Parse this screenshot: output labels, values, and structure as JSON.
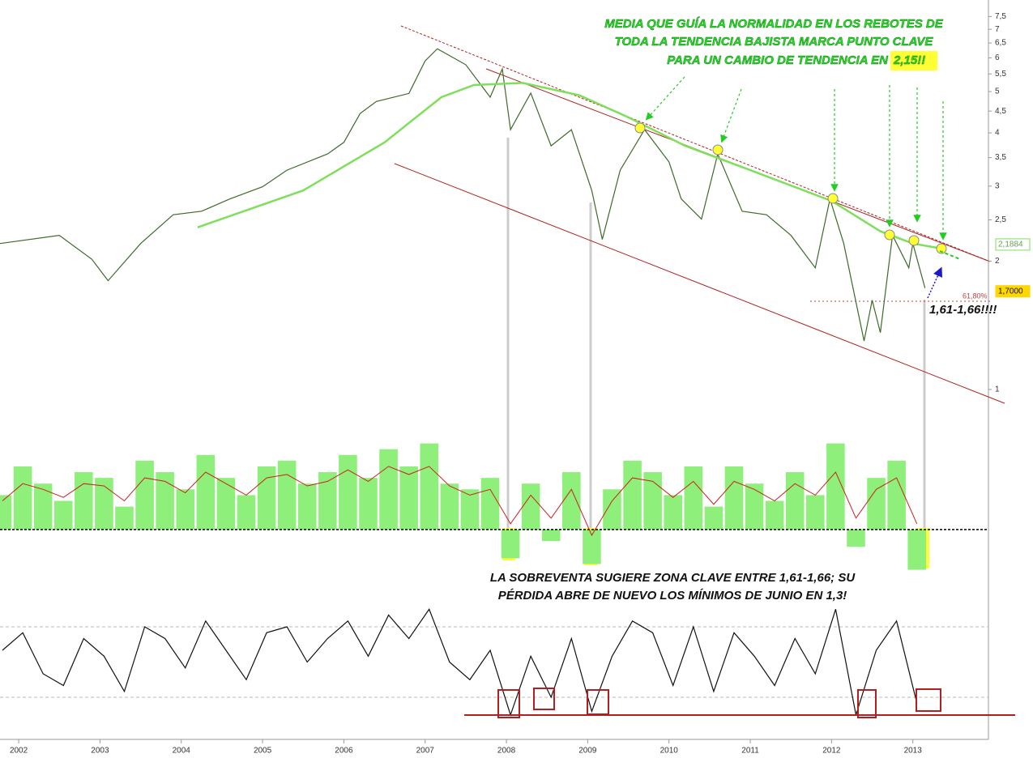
{
  "chart_data": [
    {
      "type": "line",
      "log_scale": true,
      "xlim": [
        2001.77,
        2013.93
      ],
      "ylim": [
        0.92,
        8.2
      ],
      "yticks": [
        {
          "value": 7.5,
          "label": "7,5"
        },
        7,
        {
          "value": 6.5,
          "label": "6,5"
        },
        6,
        {
          "value": 5.5,
          "label": "5,5"
        },
        5,
        {
          "value": 4.5,
          "label": "4,5"
        },
        4,
        {
          "value": 3.5,
          "label": "3,5"
        },
        3,
        {
          "value": 2.5,
          "label": "2,5"
        },
        2,
        1
      ],
      "series": [
        {
          "color": "#3d6a2a",
          "x": [
            2001.77,
            2002.5,
            2002.9,
            2003.1,
            2003.5,
            2003.9,
            2004.25,
            2004.6,
            2005.0,
            2005.3,
            2005.8,
            2006.0,
            2006.2,
            2006.4,
            2006.8,
            2007.0,
            2007.15,
            2007.5,
            2007.8,
            2007.95,
            2008.05,
            2008.3,
            2008.55,
            2008.8,
            2009.05,
            2009.18,
            2009.4,
            2009.7,
            2010.0,
            2010.15,
            2010.4,
            2010.6,
            2010.9,
            2011.2,
            2011.5,
            2011.8,
            2011.98,
            2012.15,
            2012.4,
            2012.5,
            2012.6,
            2012.75,
            2012.95,
            2013.0,
            2013.15
          ],
          "values": [
            2.2,
            2.3,
            2.02,
            1.8,
            2.2,
            2.57,
            2.62,
            2.8,
            2.99,
            3.27,
            3.57,
            3.8,
            4.44,
            4.74,
            4.95,
            5.9,
            6.3,
            5.78,
            4.85,
            5.65,
            4.07,
            4.96,
            3.73,
            4.07,
            2.93,
            2.25,
            3.27,
            4.07,
            3.42,
            2.8,
            2.51,
            3.57,
            2.62,
            2.57,
            2.3,
            1.93,
            2.8,
            2.2,
            1.3,
            1.62,
            1.36,
            2.3,
            1.93,
            2.2,
            1.73
          ]
        },
        {
          "color": "#7ee05a",
          "x": [
            2004.2,
            2005.5,
            2006.5,
            2007.2,
            2007.6,
            2008.2,
            2008.9,
            2009.5,
            2010.2,
            2011.0,
            2012.0,
            2012.6,
            2013.0,
            2013.3
          ],
          "values": [
            2.4,
            2.93,
            3.8,
            4.85,
            5.18,
            5.24,
            4.9,
            4.35,
            3.73,
            3.27,
            2.77,
            2.35,
            2.2,
            2.15
          ]
        }
      ],
      "price_markers": [
        {
          "value": 2.1884,
          "label": "2,1884",
          "color": "#7ee05a"
        },
        {
          "value": 1.7,
          "label": "1,7000",
          "color": "#ffd700"
        }
      ],
      "annotations": [
        "MEDIA QUE GUÍA LA NORMALIDAD EN LOS REBOTES DE",
        "TODA LA TENDENCIA BAJISTA MARCA PUNTO CLAVE",
        "PARA UN CAMBIO DE TENDENCIA EN",
        "2,15!!",
        "1,61-1,66!!!!",
        "61,80%"
      ]
    },
    {
      "type": "bar",
      "xlim": [
        2001.77,
        2013.93
      ],
      "ylim": [
        -36,
        105
      ],
      "x": [
        2001.8,
        2002.05,
        2002.3,
        2002.55,
        2002.8,
        2003.05,
        2003.3,
        2003.55,
        2003.8,
        2004.05,
        2004.3,
        2004.55,
        2004.8,
        2005.05,
        2005.3,
        2005.55,
        2005.8,
        2006.05,
        2006.3,
        2006.55,
        2006.8,
        2007.05,
        2007.3,
        2007.55,
        2007.8,
        2008.05,
        2008.3,
        2008.55,
        2008.8,
        2009.05,
        2009.3,
        2009.55,
        2009.8,
        2010.05,
        2010.3,
        2010.55,
        2010.8,
        2011.05,
        2011.3,
        2011.55,
        2011.8,
        2012.05,
        2012.3,
        2012.55,
        2012.8,
        2013.05
      ],
      "series": [
        {
          "color": "#8ef07a",
          "values": [
            30,
            55,
            40,
            25,
            50,
            45,
            20,
            60,
            50,
            35,
            65,
            45,
            30,
            55,
            60,
            40,
            50,
            65,
            45,
            70,
            55,
            75,
            40,
            35,
            45,
            -25,
            40,
            -10,
            50,
            -30,
            35,
            60,
            50,
            30,
            55,
            20,
            55,
            40,
            25,
            50,
            30,
            75,
            -15,
            45,
            60,
            -35
          ]
        },
        {
          "color": "#cc2020",
          "values": [
            25,
            40,
            35,
            28,
            40,
            38,
            25,
            45,
            42,
            32,
            50,
            40,
            30,
            45,
            48,
            38,
            42,
            52,
            42,
            55,
            48,
            55,
            38,
            30,
            35,
            5,
            30,
            10,
            35,
            -5,
            25,
            45,
            42,
            28,
            42,
            22,
            42,
            35,
            25,
            40,
            30,
            50,
            10,
            35,
            45,
            5
          ]
        }
      ],
      "annotations": [
        "LA SOBREVENTA SUGIERE ZONA CLAVE ENTRE 1,61-1,66; SU",
        "PÉRDIDA ABRE DE NUEVO LOS MÍNIMOS DE JUNIO EN 1,3!"
      ]
    },
    {
      "type": "line",
      "xlim": [
        2001.77,
        2013.93
      ],
      "ylim": [
        0,
        100
      ],
      "xticks": [
        2002,
        2003,
        2004,
        2005,
        2006,
        2007,
        2008,
        2009,
        2010,
        2011,
        2012,
        2013
      ],
      "reference_lines": [
        20,
        80
      ],
      "x": [
        2001.8,
        2002.05,
        2002.3,
        2002.55,
        2002.8,
        2003.05,
        2003.3,
        2003.55,
        2003.8,
        2004.05,
        2004.3,
        2004.55,
        2004.8,
        2005.05,
        2005.3,
        2005.55,
        2005.8,
        2006.05,
        2006.3,
        2006.55,
        2006.8,
        2007.05,
        2007.3,
        2007.55,
        2007.8,
        2008.05,
        2008.3,
        2008.55,
        2008.8,
        2009.05,
        2009.3,
        2009.55,
        2009.8,
        2010.05,
        2010.3,
        2010.55,
        2010.8,
        2011.05,
        2011.3,
        2011.55,
        2011.8,
        2012.05,
        2012.3,
        2012.55,
        2012.8,
        2013.05
      ],
      "series": [
        {
          "color": "#111111",
          "values": [
            60,
            75,
            40,
            30,
            70,
            55,
            25,
            80,
            70,
            45,
            85,
            60,
            35,
            75,
            80,
            50,
            70,
            85,
            55,
            90,
            70,
            95,
            50,
            35,
            60,
            5,
            55,
            20,
            70,
            8,
            55,
            85,
            75,
            30,
            80,
            25,
            75,
            55,
            30,
            70,
            40,
            95,
            5,
            60,
            85,
            15
          ]
        }
      ]
    }
  ]
}
